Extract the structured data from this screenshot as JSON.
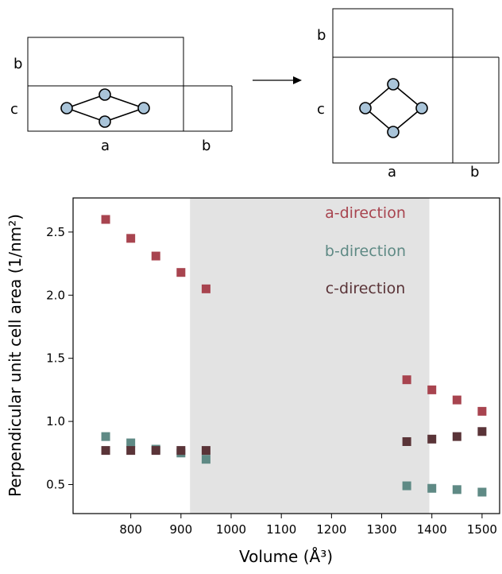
{
  "schematic": {
    "left": {
      "label_a": "a",
      "label_b_bottom": "b",
      "label_b_left": "b",
      "label_c": "c"
    },
    "right": {
      "label_a": "a",
      "label_b_bottom": "b",
      "label_b_left": "b",
      "label_c": "c"
    }
  },
  "chart_data": {
    "type": "scatter",
    "xlabel": "Volume (Å³)",
    "ylabel": "Perpendicular unit cell area (1/nm²)",
    "xlim": [
      685,
      1535
    ],
    "ylim": [
      0.27,
      2.77
    ],
    "x_ticks": [
      800,
      900,
      1000,
      1100,
      1200,
      1300,
      1400,
      1500
    ],
    "y_ticks": [
      0.5,
      1.0,
      1.5,
      2.0,
      2.5
    ],
    "x_tick_labels": [
      "800",
      "900",
      "1000",
      "1100",
      "1200",
      "1300",
      "1400",
      "1500"
    ],
    "y_tick_labels": [
      "0.5",
      "1.0",
      "1.5",
      "2.0",
      "2.5"
    ],
    "shaded_region": {
      "x0": 918,
      "x1": 1395,
      "color": "#e3e3e3"
    },
    "grid": false,
    "legend_position": "top-center",
    "series": [
      {
        "name": "a-direction",
        "color": "#a8444f",
        "points": [
          [
            750,
            2.6
          ],
          [
            800,
            2.45
          ],
          [
            850,
            2.31
          ],
          [
            900,
            2.18
          ],
          [
            950,
            2.05
          ],
          [
            1350,
            1.33
          ],
          [
            1400,
            1.25
          ],
          [
            1450,
            1.17
          ],
          [
            1500,
            1.08
          ]
        ]
      },
      {
        "name": "b-direction",
        "color": "#5f8a85",
        "points": [
          [
            750,
            0.88
          ],
          [
            800,
            0.83
          ],
          [
            850,
            0.78
          ],
          [
            900,
            0.75
          ],
          [
            950,
            0.7
          ],
          [
            1350,
            0.49
          ],
          [
            1400,
            0.47
          ],
          [
            1450,
            0.46
          ],
          [
            1500,
            0.44
          ]
        ]
      },
      {
        "name": "c-direction",
        "color": "#5a3438",
        "points": [
          [
            750,
            0.77
          ],
          [
            800,
            0.77
          ],
          [
            850,
            0.77
          ],
          [
            900,
            0.77
          ],
          [
            950,
            0.77
          ],
          [
            1350,
            0.84
          ],
          [
            1400,
            0.86
          ],
          [
            1450,
            0.88
          ],
          [
            1500,
            0.92
          ]
        ]
      }
    ]
  }
}
